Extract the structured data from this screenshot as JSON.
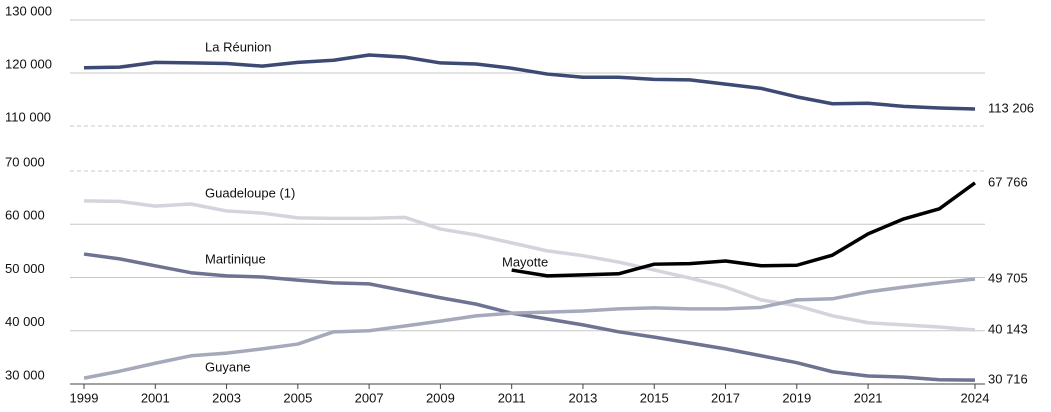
{
  "chart_data": [
    {
      "type": "line",
      "x": [
        1999,
        2000,
        2001,
        2002,
        2003,
        2004,
        2005,
        2006,
        2007,
        2008,
        2009,
        2010,
        2011,
        2012,
        2013,
        2014,
        2015,
        2016,
        2017,
        2018,
        2019,
        2020,
        2021,
        2022,
        2023,
        2024
      ],
      "ylim": [
        110000,
        130000
      ],
      "yticks": [
        {
          "value": 110000,
          "label": "110 000"
        },
        {
          "value": 120000,
          "label": "120 000"
        },
        {
          "value": 130000,
          "label": "130 000"
        }
      ],
      "grid": true,
      "series": [
        {
          "name": "La Réunion",
          "color": "#3d4a73",
          "values": [
            121000,
            121100,
            122000,
            121900,
            121800,
            121300,
            122000,
            122400,
            123400,
            123000,
            121900,
            121700,
            120900,
            119800,
            119200,
            119200,
            118800,
            118700,
            117900,
            117100,
            115500,
            114200,
            114300,
            113700,
            113400,
            113206
          ],
          "value_labels": [
            null,
            null,
            null,
            null,
            null,
            null,
            null,
            null,
            null,
            null,
            null,
            null,
            null,
            null,
            null,
            null,
            null,
            null,
            null,
            null,
            null,
            null,
            null,
            null,
            null,
            "113 206"
          ]
        }
      ]
    },
    {
      "type": "line",
      "x": [
        1999,
        2000,
        2001,
        2002,
        2003,
        2004,
        2005,
        2006,
        2007,
        2008,
        2009,
        2010,
        2011,
        2012,
        2013,
        2014,
        2015,
        2016,
        2017,
        2018,
        2019,
        2020,
        2021,
        2022,
        2023,
        2024
      ],
      "xlim": [
        1999,
        2024
      ],
      "xticks": [
        1999,
        2001,
        2003,
        2005,
        2007,
        2009,
        2011,
        2013,
        2015,
        2017,
        2019,
        2021,
        2024
      ],
      "ylim": [
        30000,
        70000
      ],
      "yticks": [
        {
          "value": 30000,
          "label": "30 000"
        },
        {
          "value": 40000,
          "label": "40 000"
        },
        {
          "value": 50000,
          "label": "50 000"
        },
        {
          "value": 60000,
          "label": "60 000"
        },
        {
          "value": 70000,
          "label": "70 000"
        }
      ],
      "grid": true,
      "series": [
        {
          "name": "Guadeloupe (1)",
          "color": "#d4d4dc",
          "values": [
            64400,
            64300,
            63400,
            63800,
            62500,
            62100,
            61200,
            61100,
            61100,
            61300,
            59100,
            58000,
            56500,
            55000,
            54100,
            52900,
            51400,
            49900,
            48200,
            45800,
            44700,
            42800,
            41500,
            41100,
            40700,
            40143
          ],
          "value_labels": [
            null,
            null,
            null,
            null,
            null,
            null,
            null,
            null,
            null,
            null,
            null,
            null,
            null,
            null,
            null,
            null,
            null,
            null,
            null,
            null,
            null,
            null,
            null,
            null,
            null,
            "40 143"
          ]
        },
        {
          "name": "Martinique",
          "color": "#6e7391",
          "values": [
            54400,
            53500,
            52200,
            50900,
            50300,
            50100,
            49500,
            49000,
            48800,
            47500,
            46200,
            45000,
            43300,
            42200,
            41100,
            39800,
            38800,
            37700,
            36600,
            35300,
            34000,
            32300,
            31500,
            31300,
            30800,
            30716
          ],
          "value_labels": [
            null,
            null,
            null,
            null,
            null,
            null,
            null,
            null,
            null,
            null,
            null,
            null,
            null,
            null,
            null,
            null,
            null,
            null,
            null,
            null,
            null,
            null,
            null,
            null,
            null,
            "30 716"
          ]
        },
        {
          "name": "Guyane",
          "color": "#a6a9bb",
          "values": [
            31100,
            32400,
            33900,
            35300,
            35800,
            36600,
            37500,
            39800,
            40000,
            40900,
            41800,
            42800,
            43300,
            43500,
            43700,
            44100,
            44300,
            44100,
            44100,
            44400,
            45800,
            46000,
            47300,
            48200,
            49000,
            49705
          ],
          "value_labels": [
            null,
            null,
            null,
            null,
            null,
            null,
            null,
            null,
            null,
            null,
            null,
            null,
            null,
            null,
            null,
            null,
            null,
            null,
            null,
            null,
            null,
            null,
            null,
            null,
            null,
            "49 705"
          ]
        },
        {
          "name": "Mayotte",
          "color": "#000000",
          "values": [
            null,
            null,
            null,
            null,
            null,
            null,
            null,
            null,
            null,
            null,
            null,
            null,
            51400,
            50300,
            50500,
            50700,
            52500,
            52600,
            53100,
            52200,
            52300,
            54200,
            58200,
            61000,
            62900,
            67766
          ],
          "value_labels": [
            null,
            null,
            null,
            null,
            null,
            null,
            null,
            null,
            null,
            null,
            null,
            null,
            null,
            null,
            null,
            null,
            null,
            null,
            null,
            null,
            null,
            null,
            null,
            null,
            null,
            "67 766"
          ]
        }
      ]
    }
  ]
}
